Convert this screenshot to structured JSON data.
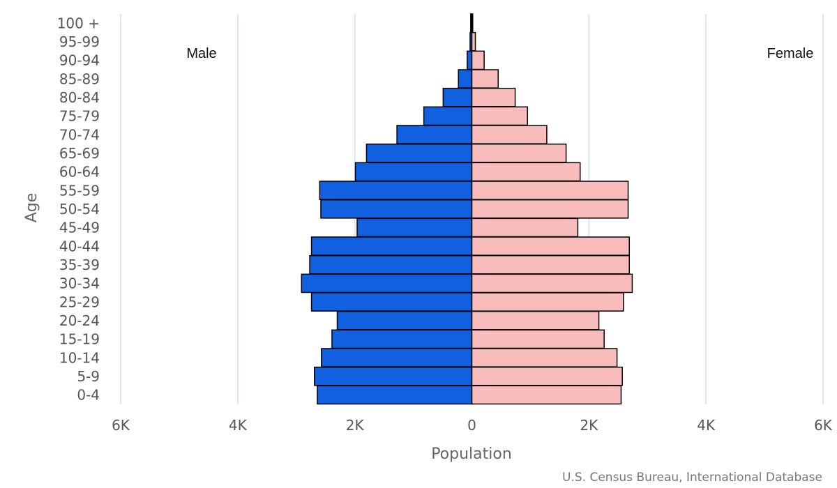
{
  "chart_data": {
    "type": "bar",
    "orientation": "horizontal-population-pyramid",
    "categories": [
      "100 +",
      "95-99",
      "90-94",
      "85-89",
      "80-84",
      "75-79",
      "70-74",
      "65-69",
      "60-64",
      "55-59",
      "50-54",
      "45-49",
      "40-44",
      "35-39",
      "30-34",
      "25-29",
      "20-24",
      "15-19",
      "10-14",
      "5-9",
      "0-4"
    ],
    "series": [
      {
        "name": "Male",
        "color": "#1060e0",
        "values": [
          20,
          30,
          80,
          230,
          490,
          820,
          1280,
          1800,
          1990,
          2600,
          2580,
          1960,
          2740,
          2770,
          2910,
          2740,
          2300,
          2390,
          2570,
          2690,
          2640
        ]
      },
      {
        "name": "Female",
        "color": "#f9bcbc",
        "values": [
          15,
          60,
          210,
          450,
          740,
          950,
          1280,
          1610,
          1850,
          2670,
          2670,
          1810,
          2690,
          2690,
          2740,
          2590,
          2170,
          2260,
          2480,
          2570,
          2550
        ]
      }
    ],
    "xlabel": "Population",
    "ylabel": "Age",
    "xlim": [
      -6000,
      6000
    ],
    "xticks": [
      "6K",
      "4K",
      "2K",
      "0",
      "2K",
      "4K",
      "6K"
    ],
    "xtick_values": [
      -6000,
      -4000,
      -2000,
      0,
      2000,
      4000,
      6000
    ],
    "legend_left": "Male",
    "legend_right": "Female",
    "credits": "U.S. Census Bureau, International Database"
  }
}
